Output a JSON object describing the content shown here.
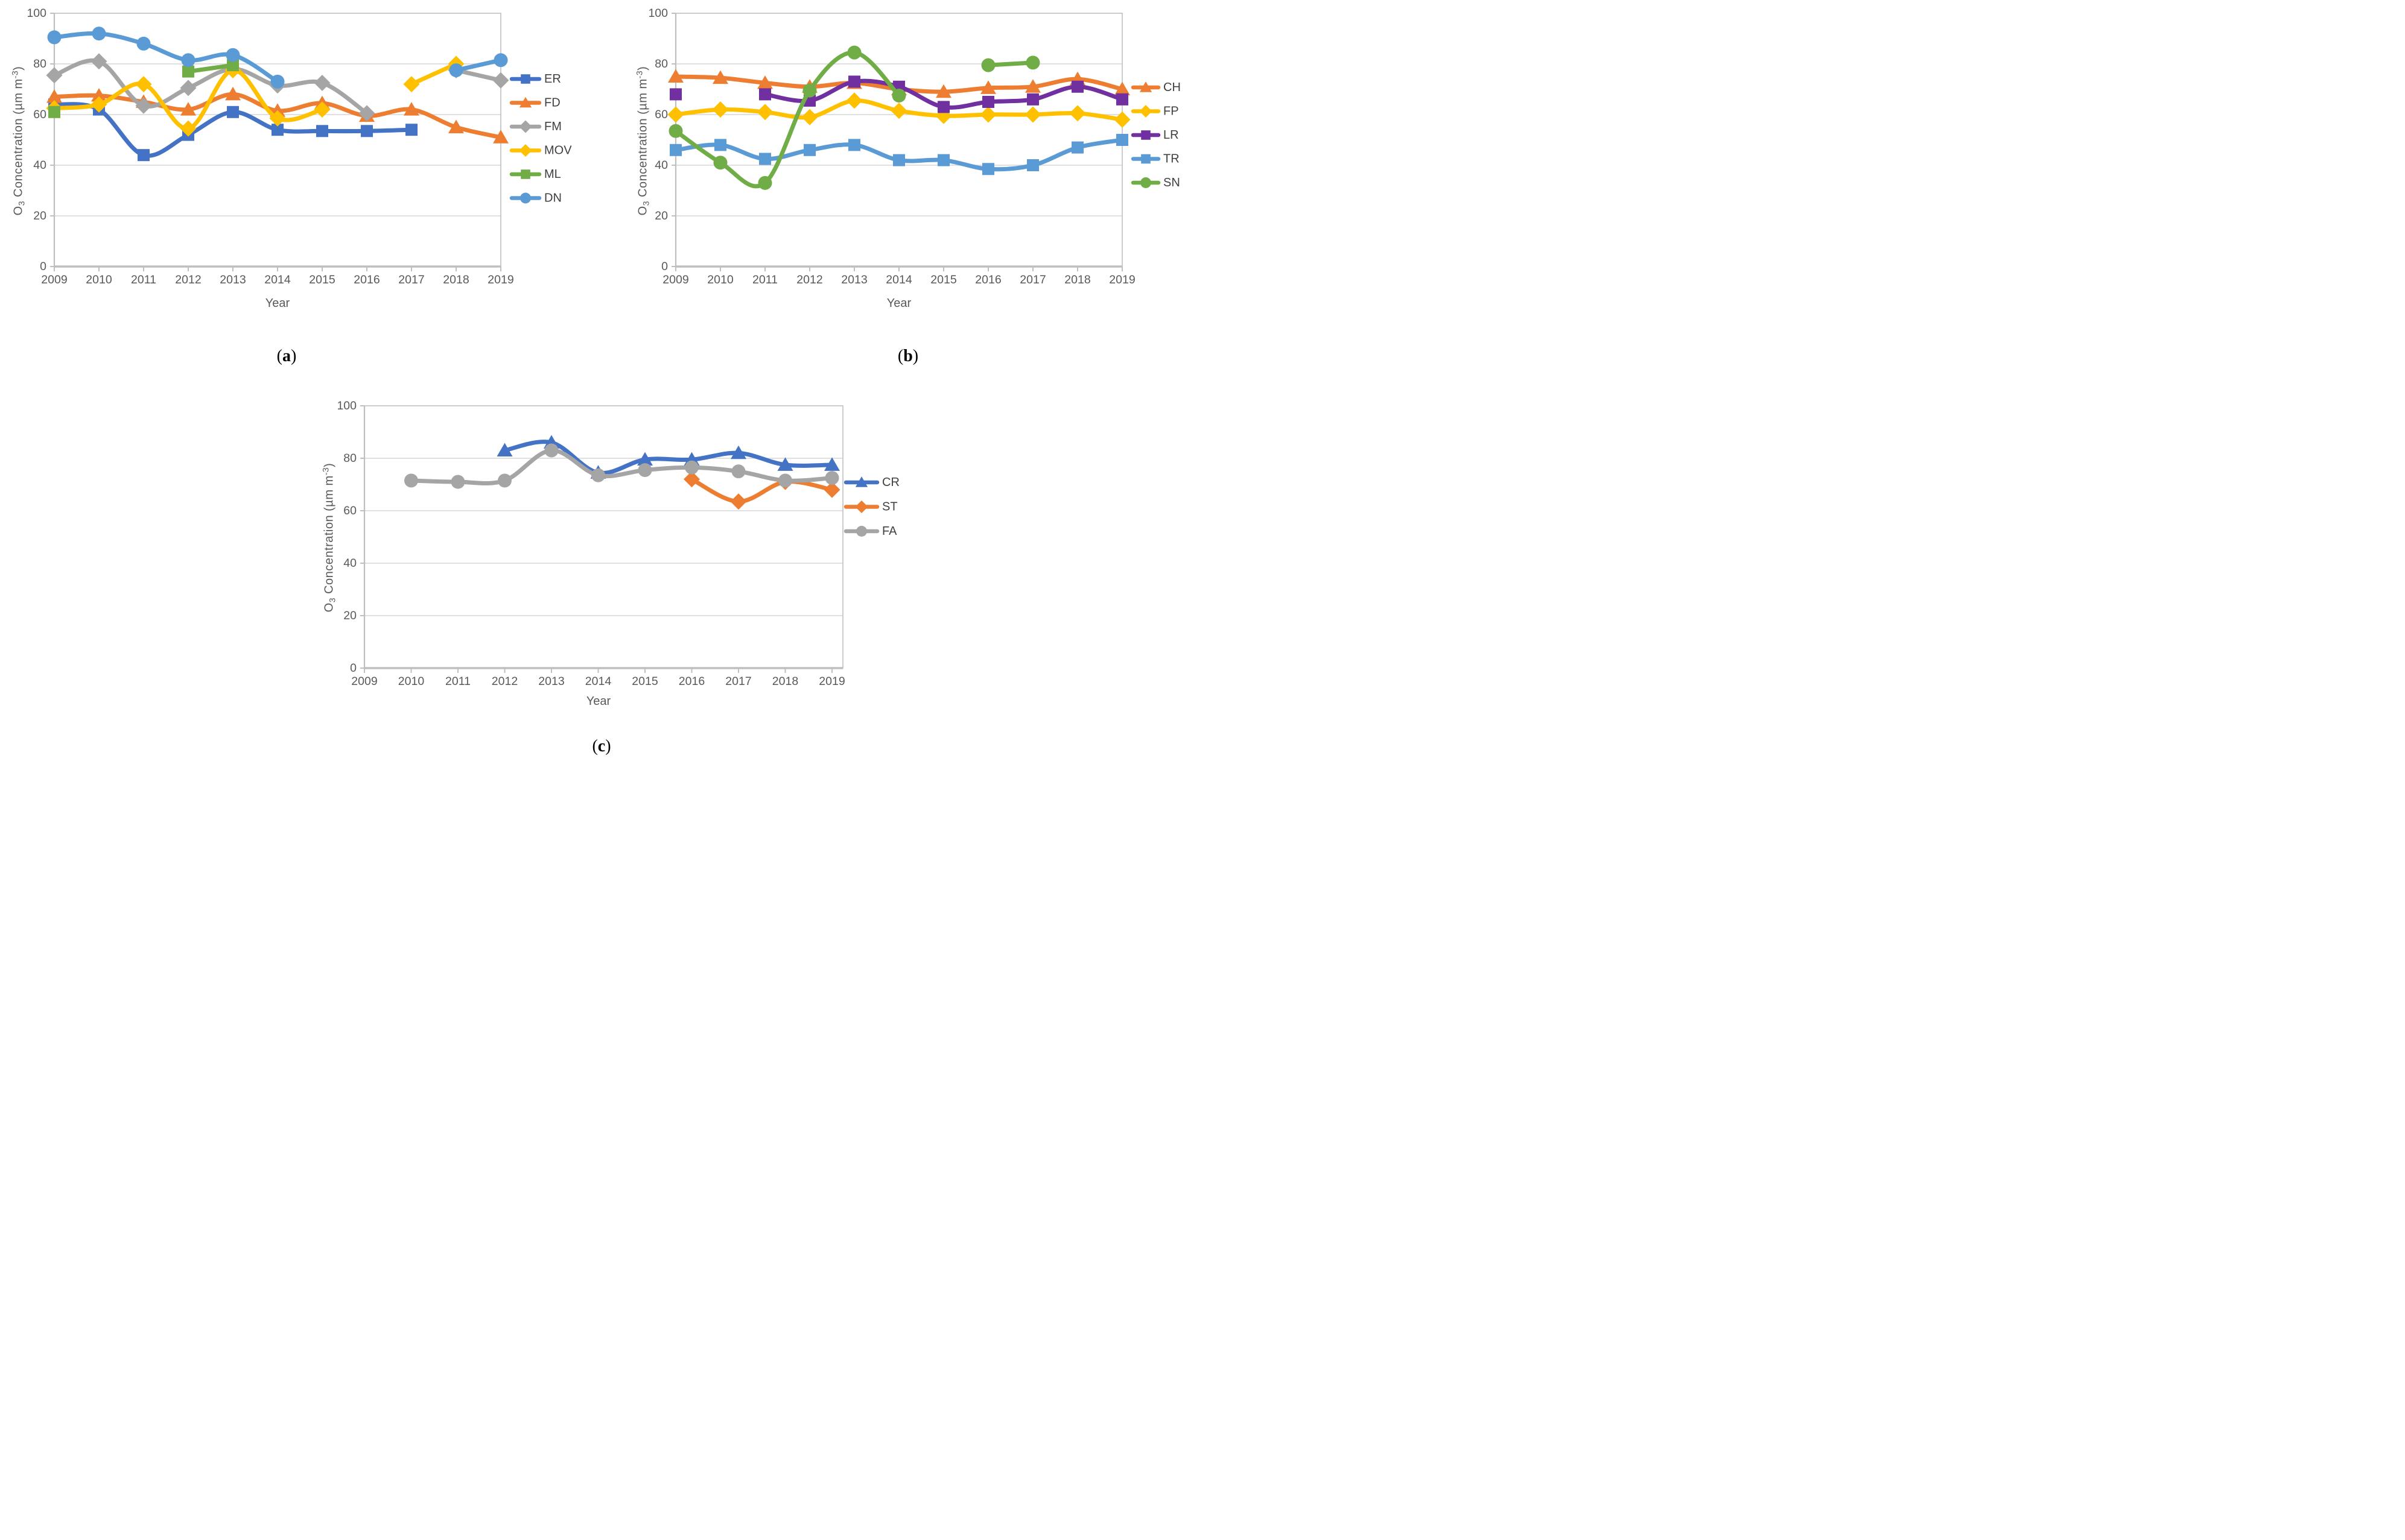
{
  "figure": {
    "xlabel": "Year",
    "ylabel_parts": {
      "prefix": "O",
      "sub": "3",
      "mid": " Concentration (µm m",
      "sup": "-3",
      "suffix": ")"
    },
    "years": [
      "2009",
      "2010",
      "2011",
      "2012",
      "2013",
      "2014",
      "2015",
      "2016",
      "2017",
      "2018",
      "2019"
    ],
    "yticks": [
      0,
      20,
      40,
      60,
      80,
      100
    ],
    "ylim": [
      0,
      100
    ],
    "colors": {
      "blue": "#4472C4",
      "orange": "#ED7D31",
      "gray": "#A5A5A5",
      "gold": "#FFC000",
      "green": "#70AD47",
      "light_blue": "#5B9BD5",
      "purple": "#7030A0",
      "grid": "#D6D6D6",
      "axis": "#BFBFBF",
      "tick_text": "#595959",
      "legend_text": "#404040"
    }
  },
  "chart_data": [
    {
      "id": "a",
      "type": "line",
      "caption_open": "(",
      "caption_letter": "a",
      "caption_close": ")",
      "title": "",
      "xlabel": "Year",
      "ylabel": "O3 Concentration (um m-3)",
      "x": [
        2009,
        2010,
        2011,
        2012,
        2013,
        2014,
        2015,
        2016,
        2017,
        2018,
        2019
      ],
      "ylim": [
        0,
        100
      ],
      "grid": true,
      "legend_position": "right",
      "series": [
        {
          "name": "ER",
          "color": "#4472C4",
          "marker": "square",
          "values": [
            64,
            62,
            44,
            52,
            61,
            54,
            53.5,
            53.5,
            54,
            null,
            null
          ]
        },
        {
          "name": "FD",
          "color": "#ED7D31",
          "marker": "triangle",
          "values": [
            67,
            67.5,
            65,
            62,
            68,
            61.5,
            64.5,
            59.5,
            62,
            55,
            51
          ]
        },
        {
          "name": "FM",
          "color": "#A5A5A5",
          "marker": "diamond",
          "values": [
            75.5,
            81,
            63.5,
            70.5,
            78,
            71.5,
            72.5,
            60.5,
            null,
            77.5,
            73.5
          ]
        },
        {
          "name": "MOV",
          "color": "#FFC000",
          "marker": "diamond",
          "values": [
            62.5,
            64,
            72,
            54.5,
            77.5,
            58.5,
            62,
            null,
            72,
            80,
            null
          ]
        },
        {
          "name": "ML",
          "color": "#70AD47",
          "marker": "square",
          "values": [
            61,
            null,
            null,
            77,
            79.5,
            null,
            null,
            null,
            null,
            null,
            null
          ]
        },
        {
          "name": "DN",
          "color": "#5B9BD5",
          "marker": "circle",
          "values": [
            90.5,
            92,
            88,
            81.5,
            83.5,
            73,
            null,
            null,
            null,
            77.5,
            81.5
          ]
        }
      ]
    },
    {
      "id": "b",
      "type": "line",
      "caption_open": "(",
      "caption_letter": "b",
      "caption_close": ")",
      "title": "",
      "xlabel": "Year",
      "ylabel": "O3 Concentration (um m-3)",
      "x": [
        2009,
        2010,
        2011,
        2012,
        2013,
        2014,
        2015,
        2016,
        2017,
        2018,
        2019
      ],
      "ylim": [
        0,
        100
      ],
      "grid": true,
      "legend_position": "right",
      "series": [
        {
          "name": "CH",
          "color": "#ED7D31",
          "marker": "triangle",
          "values": [
            75,
            74.5,
            72.5,
            71,
            72.5,
            70,
            69,
            70.5,
            71,
            74,
            70
          ]
        },
        {
          "name": "FP",
          "color": "#FFC000",
          "marker": "diamond",
          "values": [
            60,
            62,
            61,
            59,
            65.5,
            61.5,
            59.5,
            60,
            60,
            60.5,
            58
          ]
        },
        {
          "name": "LR",
          "color": "#7030A0",
          "marker": "square",
          "values": [
            68,
            null,
            68,
            65.5,
            73,
            71,
            63,
            65,
            66,
            71,
            66
          ]
        },
        {
          "name": "TR",
          "color": "#5B9BD5",
          "marker": "square",
          "values": [
            46,
            48,
            42.5,
            46,
            48,
            42,
            42,
            38.5,
            40,
            47,
            50
          ]
        },
        {
          "name": "SN",
          "color": "#70AD47",
          "marker": "circle",
          "values": [
            53.5,
            41,
            33,
            69.5,
            84.5,
            67.5,
            null,
            79.5,
            80.5,
            null,
            null
          ]
        }
      ]
    },
    {
      "id": "c",
      "type": "line",
      "caption_open": "(",
      "caption_letter": "c",
      "caption_close": ")",
      "title": "",
      "xlabel": "Year",
      "ylabel": "O3 Concentration (um m-3)",
      "x": [
        2009,
        2010,
        2011,
        2012,
        2013,
        2014,
        2015,
        2016,
        2017,
        2018,
        2019
      ],
      "ylim": [
        0,
        100
      ],
      "grid": true,
      "legend_position": "right",
      "series": [
        {
          "name": "CR",
          "color": "#4472C4",
          "marker": "triangle",
          "values": [
            null,
            null,
            null,
            83,
            86,
            74.5,
            79.5,
            79.5,
            82,
            77.5,
            77.5
          ]
        },
        {
          "name": "ST",
          "color": "#ED7D31",
          "marker": "diamond",
          "values": [
            null,
            null,
            null,
            null,
            null,
            null,
            null,
            72,
            63.5,
            71,
            68
          ]
        },
        {
          "name": "FA",
          "color": "#A5A5A5",
          "marker": "circle",
          "values": [
            null,
            71.5,
            71,
            71.5,
            83,
            73.5,
            75.5,
            76.5,
            75,
            71.5,
            72.5
          ]
        }
      ]
    }
  ]
}
